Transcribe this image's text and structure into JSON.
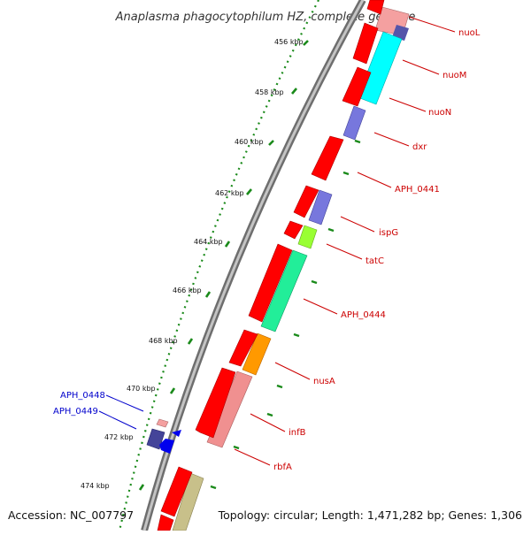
{
  "title": "Anaplasma phagocytophilum HZ, complete genome",
  "footer": {
    "accession": "Accession: NC_007797",
    "topology": "Topology: circular; Length: 1,471,282 bp; Genes: 1,306"
  },
  "scale_ticks": [
    "456 kbp",
    "458 kbp",
    "460 kbp",
    "462 kbp",
    "464 kbp",
    "466 kbp",
    "468 kbp",
    "470 kbp",
    "472 kbp",
    "474 kbp"
  ],
  "labels": {
    "nuoL": "nuoL",
    "nuoM": "nuoM",
    "nuoN": "nuoN",
    "dxr": "dxr",
    "APH_0441": "APH_0441",
    "ispG": "ispG",
    "tatC": "tatC",
    "APH_0444": "APH_0444",
    "nusA": "nusA",
    "infB": "infB",
    "rbfA": "rbfA",
    "APH_0448": "APH_0448",
    "APH_0449": "APH_0449"
  },
  "colors": {
    "cds_forward": "#ff0000",
    "nuo": "#00ffff",
    "dxr": "#7777dd",
    "ispG": "#7777dd",
    "tatC": "#99ff33",
    "APH_0444": "#22ee99",
    "nusA": "#ff9900",
    "infB": "#f09090",
    "rbfA": "#c8c08a",
    "APH_0449": "#444499",
    "label_red": "#cc0000",
    "label_blue": "#0000cc",
    "tick_green": "#1a8a1a"
  }
}
